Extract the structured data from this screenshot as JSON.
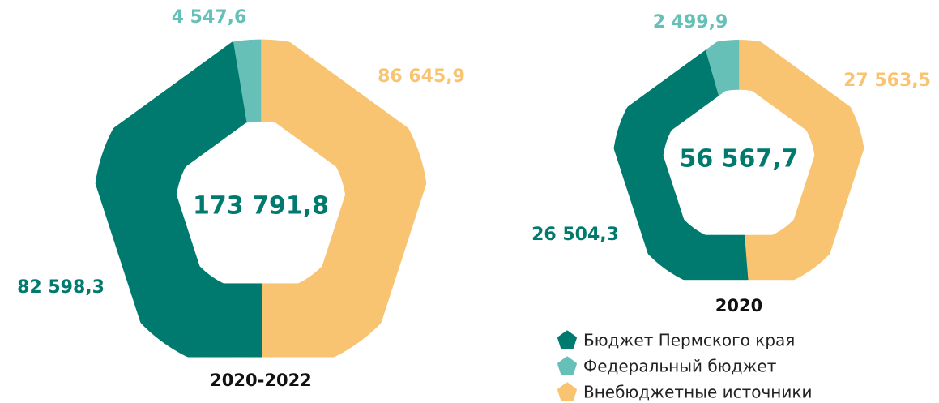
{
  "chart_data": [
    {
      "type": "pie",
      "title": "2020-2022",
      "center_label": "173 791,8",
      "values": [
        82598.3,
        4547.6,
        86645.9
      ],
      "value_labels": [
        "82 598,3",
        "4 547,6",
        "86 645,9"
      ],
      "colors": [
        "#007a6e",
        "#66c0b8",
        "#f8c471"
      ]
    },
    {
      "type": "pie",
      "title": "2020",
      "center_label": "56 567,7",
      "categories": [
        "Бюджет Пермского края",
        "Федеральный бюджет",
        "Внебюджетные источники"
      ],
      "values": [
        26504.3,
        2499.9,
        27563.5
      ],
      "value_labels": [
        "26 504,3",
        "2 499,9",
        "27 563,5"
      ],
      "colors": [
        "#007a6e",
        "#66c0b8",
        "#f8c471"
      ]
    }
  ]
}
